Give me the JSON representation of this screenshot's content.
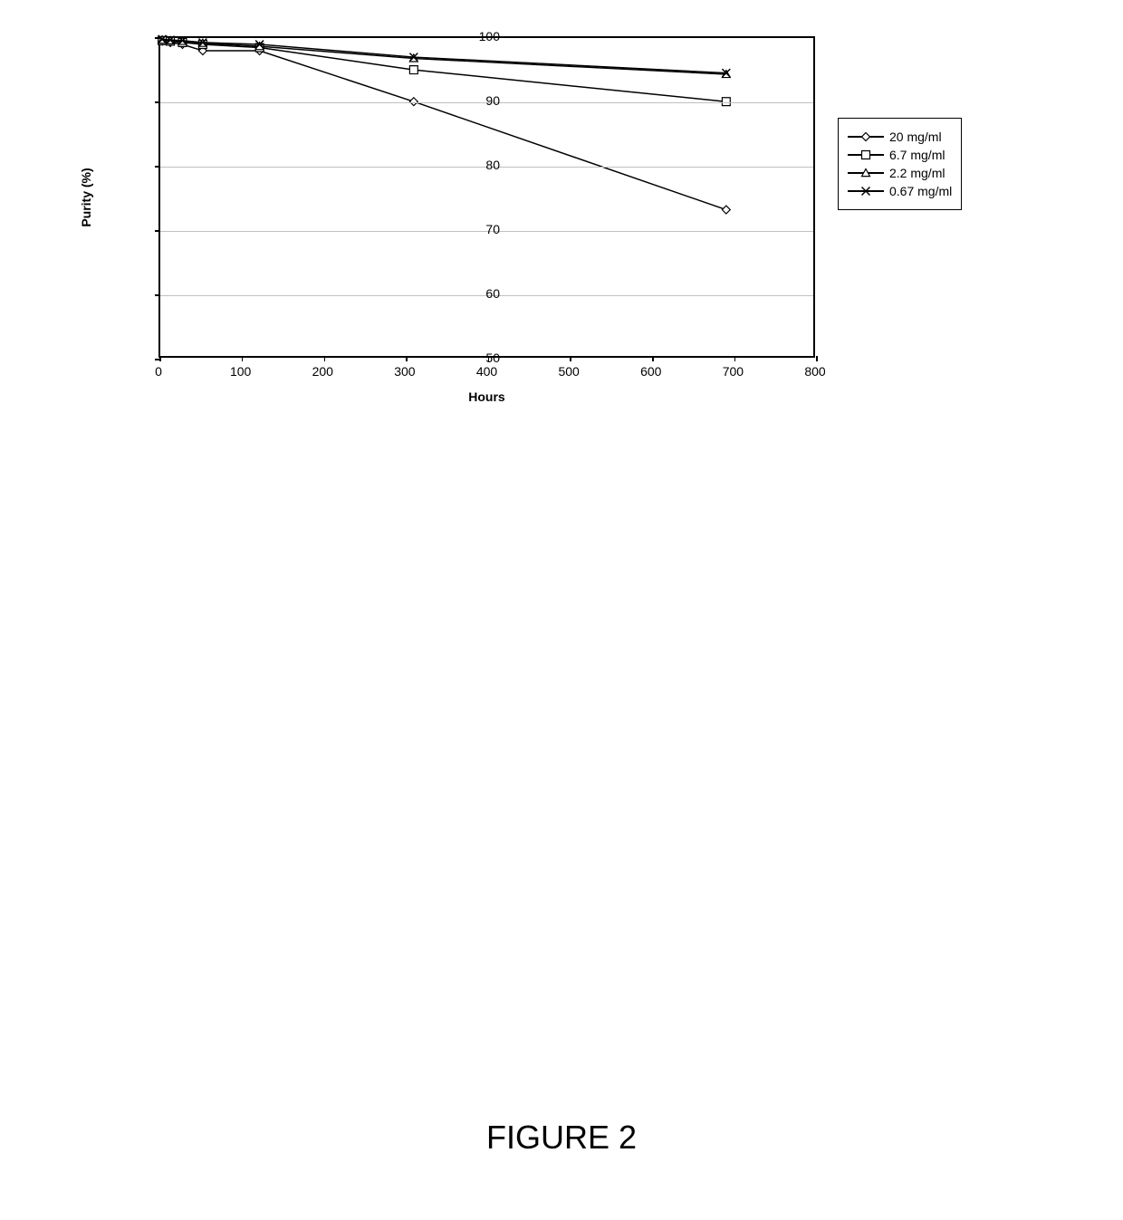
{
  "chart": {
    "type": "line",
    "xlabel": "Hours",
    "ylabel": "Purity (%)",
    "label_fontsize": 14,
    "label_fontweight": "bold",
    "xlim": [
      0,
      800
    ],
    "ylim": [
      50,
      100
    ],
    "xtick_step": 100,
    "ytick_step": 10,
    "xticks": [
      0,
      100,
      200,
      300,
      400,
      500,
      600,
      700,
      800
    ],
    "yticks": [
      50,
      60,
      70,
      80,
      90,
      100
    ],
    "background_color": "#ffffff",
    "grid_color": "#c0c0c0",
    "border_color": "#000000",
    "line_color": "#000000",
    "line_width": 1.5,
    "marker_size": 9,
    "marker_fill": "#ffffff",
    "marker_stroke": "#000000",
    "tick_fontsize": 14,
    "series": [
      {
        "label": "20 mg/ml",
        "marker": "diamond",
        "x": [
          0,
          10,
          25,
          50,
          120,
          310,
          695
        ],
        "y": [
          99.5,
          99.3,
          99.0,
          98.0,
          98.0,
          90.0,
          73.0
        ]
      },
      {
        "label": "6.7 mg/ml",
        "marker": "square",
        "x": [
          0,
          10,
          25,
          50,
          120,
          310,
          695
        ],
        "y": [
          99.6,
          99.5,
          99.3,
          99.0,
          98.5,
          95.0,
          90.0
        ]
      },
      {
        "label": "2.2 mg/ml",
        "marker": "triangle",
        "x": [
          0,
          10,
          25,
          50,
          120,
          310,
          695
        ],
        "y": [
          99.7,
          99.6,
          99.5,
          99.2,
          98.7,
          96.8,
          94.3
        ]
      },
      {
        "label": "0.67 mg/ml",
        "marker": "x",
        "x": [
          0,
          10,
          25,
          50,
          120,
          310,
          695
        ],
        "y": [
          99.8,
          99.7,
          99.6,
          99.3,
          99.0,
          97.0,
          94.5
        ]
      }
    ]
  },
  "caption": "FIGURE 2"
}
